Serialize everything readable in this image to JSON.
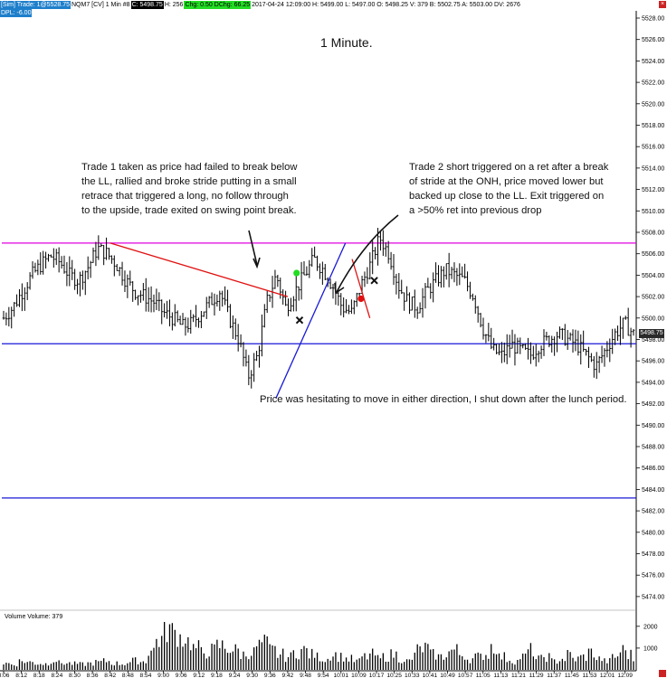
{
  "header": {
    "segments": [
      {
        "text": "[Sim]  Trade: 1@5528.75",
        "style": "blue"
      },
      {
        "text": "NQM7 [CV]  1 Min   #8",
        "style": "plain"
      },
      {
        "text": "C: 5498.75",
        "style": "black"
      },
      {
        "text": "H: 256",
        "style": "plain"
      },
      {
        "text": "Chg: 0.50",
        "style": "green"
      },
      {
        "text": "DChg: 66.25",
        "style": "green"
      },
      {
        "text": "2017-04-24 12:09:00  H: 5499.00  L: 5497.00  O: 5498.25  V: 379  B: 5502.75  A: 5503.00  DV: 2676",
        "style": "plain"
      }
    ],
    "pl_text": "DPL: -6.00",
    "close_icon": "close-icon"
  },
  "chart_data": [
    {
      "type": "ohlc",
      "title": "1 Minute.",
      "instrument": "NQM7 [CV]",
      "interval": "1 Min",
      "date": "2017-04-24",
      "x_tick_labels": [
        "8:06",
        "8:12",
        "8:18",
        "8:24",
        "8:30",
        "8:36",
        "8:42",
        "8:48",
        "8:54",
        "9:00",
        "9:06",
        "9:12",
        "9:18",
        "9:24",
        "9:30",
        "9:36",
        "9:42",
        "9:48",
        "9:54",
        "10:01",
        "10:09",
        "10:17",
        "10:25",
        "10:33",
        "10:41",
        "10:49",
        "10:57",
        "11:05",
        "11:13",
        "11:21",
        "11:29",
        "11:37",
        "11:45",
        "11:53",
        "12:01",
        "12:09"
      ],
      "y_tick_labels": [
        "5528.00",
        "5526.00",
        "5524.00",
        "5522.00",
        "5520.00",
        "5518.00",
        "5516.00",
        "5514.00",
        "5512.00",
        "5510.00",
        "5508.00",
        "5506.00",
        "5504.00",
        "5502.00",
        "5500.00",
        "5498.00",
        "5496.00",
        "5494.00",
        "5492.00",
        "5490.00",
        "5488.00",
        "5486.00",
        "5484.00",
        "5482.00",
        "5480.00",
        "5478.00",
        "5476.00",
        "5474.00"
      ],
      "ylim": [
        5473,
        5529
      ],
      "last_price": "5498.75",
      "close_profile": [
        5500.0,
        5501.0,
        5502.5,
        5504.0,
        5505.0,
        5505.8,
        5505.2,
        5504.0,
        5503.5,
        5504.8,
        5506.5,
        5506.0,
        5505.0,
        5503.5,
        5502.5,
        5502.0,
        5501.5,
        5500.5,
        5500.0,
        5499.2,
        5499.5,
        5500.5,
        5501.5,
        5502.5,
        5500.0,
        5498.0,
        5494.5,
        5496.5,
        5501.5,
        5504.0,
        5501.0,
        5502.5,
        5504.0,
        5505.5,
        5504.5,
        5503.0,
        5501.0,
        5500.5,
        5503.0,
        5505.0,
        5507.5,
        5506.0,
        5503.0,
        5501.5,
        5501.0,
        5502.5,
        5503.5,
        5504.5,
        5504.0,
        5503.5,
        5502.0,
        5499.0,
        5497.0,
        5496.5,
        5497.5,
        5497.0,
        5496.5,
        5497.5,
        5498.0,
        5498.5,
        5498.0,
        5497.5,
        5496.5,
        5495.5,
        5497.0,
        5498.5,
        5499.5,
        5498.5
      ],
      "horizontal_lines": [
        {
          "price": 5507.0,
          "color": "#e000e0"
        },
        {
          "price": 5497.6,
          "color": "#1a1ad6"
        },
        {
          "price": 5483.2,
          "color": "#1a1ad6"
        }
      ],
      "trend_lines": [
        {
          "from": [
            "8:42",
            5507.0
          ],
          "to": [
            "9:42",
            5502.0
          ],
          "color": "#e01010"
        },
        {
          "from": [
            "9:38",
            5492.5
          ],
          "to": [
            "10:03",
            5507.0
          ],
          "color": "#1a1ad6"
        },
        {
          "from": [
            "10:06",
            5505.5
          ],
          "to": [
            "10:14",
            5500.0
          ],
          "color": "#e01010"
        }
      ],
      "markers": [
        {
          "kind": "dot",
          "color": "#22dd22",
          "x": "9:45",
          "price": 5504.2
        },
        {
          "kind": "dot",
          "color": "#e01010",
          "x": "10:10",
          "price": 5501.8
        },
        {
          "kind": "x",
          "color": "#111111",
          "x": "9:46",
          "price": 5499.8
        },
        {
          "kind": "x",
          "color": "#111111",
          "x": "10:16",
          "price": 5503.5
        }
      ],
      "annotations": {
        "note1": [
          "Trade 1 taken as price had failed to break below",
          "the LL, rallied and broke stride putting in a small",
          "retrace that triggered a long, no follow through",
          "to the upside, trade exited on swing point break."
        ],
        "note2": [
          "Trade 2 short triggered on a ret after a break",
          "of stride at the ONH, price moved lower but",
          "backed up close to the LL.  Exit triggered on",
          "a >50% ret into previous drop"
        ],
        "note3": "Price was hesitating to move in either direction, I shut down after the lunch period."
      }
    },
    {
      "type": "bar",
      "title": "Volume  Volume: 379",
      "y_tick_labels": [
        "2000",
        "1000"
      ],
      "ylim": [
        0,
        2200
      ],
      "volume_profile": [
        300,
        250,
        400,
        350,
        300,
        280,
        450,
        320,
        300,
        280,
        260,
        300,
        350,
        400,
        300,
        280,
        350,
        420,
        380,
        900,
        1400,
        1900,
        1700,
        1500,
        1300,
        1000,
        800,
        900,
        1100,
        1000,
        900,
        700,
        800,
        1100,
        1200,
        900,
        700,
        600,
        800,
        900,
        700,
        600,
        500,
        700,
        600,
        500,
        400,
        600,
        700,
        500,
        600,
        700,
        500,
        400,
        900,
        1000,
        700,
        600,
        800,
        900,
        700,
        500,
        600,
        700,
        1100,
        600,
        500,
        400,
        600,
        900,
        500,
        600,
        400,
        500,
        700,
        500,
        600,
        800,
        500,
        400,
        600,
        900,
        700,
        500
      ]
    }
  ]
}
